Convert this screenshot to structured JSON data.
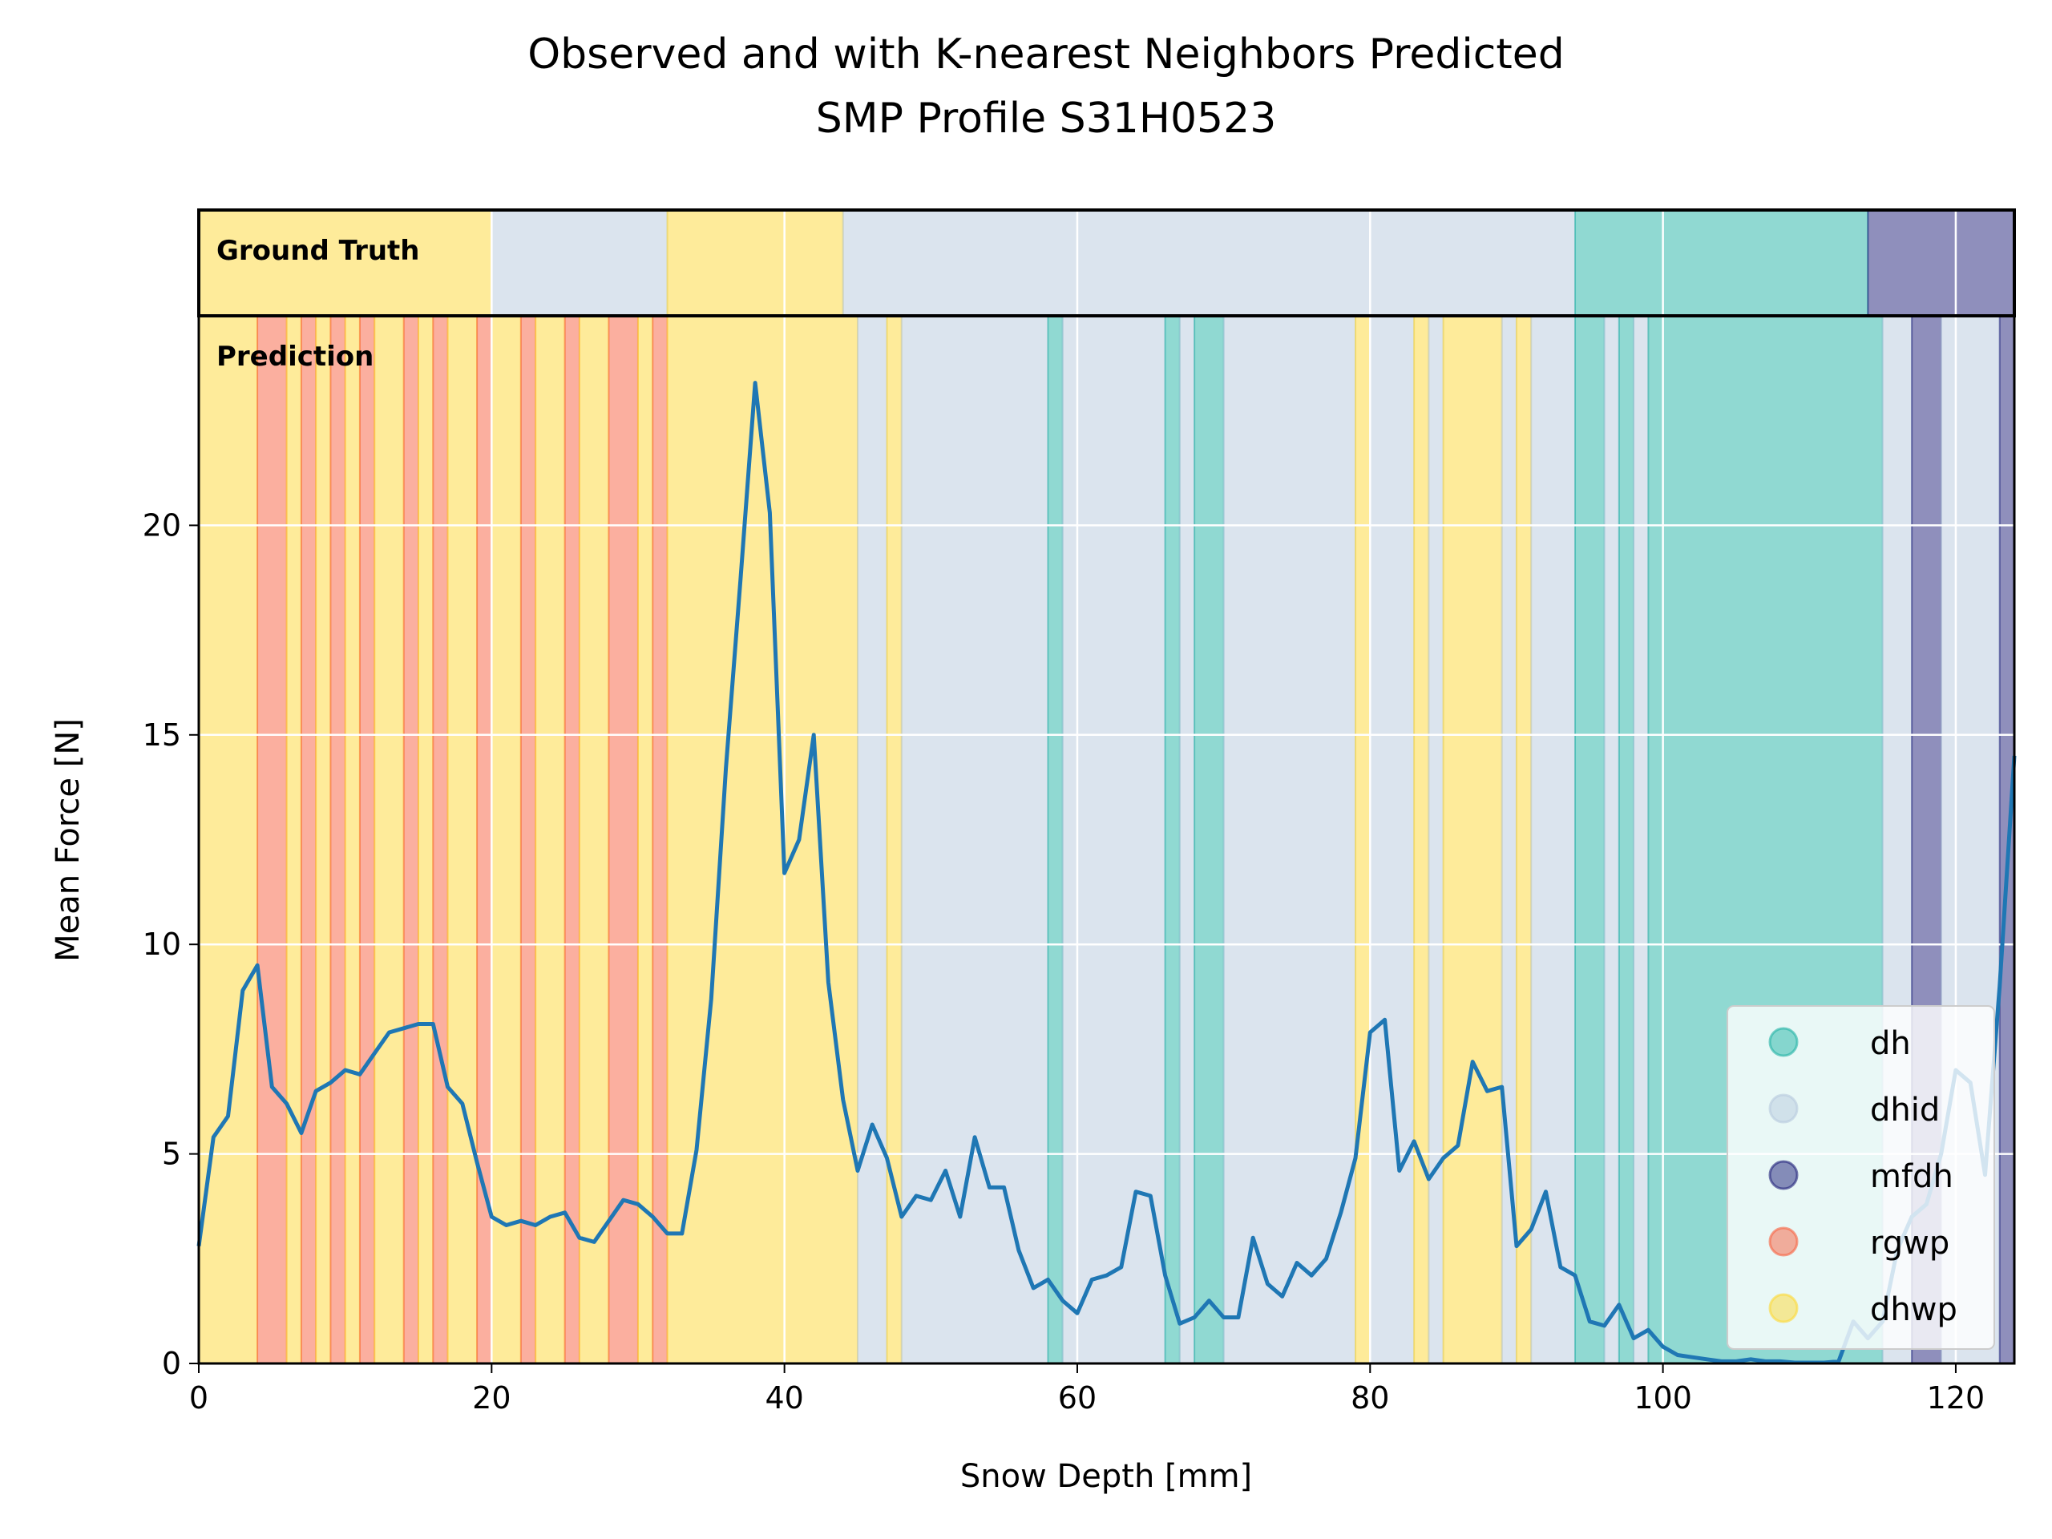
{
  "chart_data": {
    "type": "line",
    "title": "Observed and with K-nearest Neighbors Predicted",
    "subtitle": "SMP Profile S31H0523",
    "xlabel": "Snow Depth [mm]",
    "ylabel": "Mean Force [N]",
    "xlim": [
      0,
      124
    ],
    "ylim": [
      0,
      25
    ],
    "xticks": [
      0,
      20,
      40,
      60,
      80,
      100,
      120
    ],
    "yticks": [
      0,
      5,
      10,
      15,
      20
    ],
    "grid": true,
    "legend_position": "lower-right",
    "panel_labels": {
      "ground_truth": "Ground Truth",
      "prediction": "Prediction"
    },
    "classes": [
      {
        "name": "dh",
        "color": "#21b3a5"
      },
      {
        "name": "dhid",
        "color": "#b7c9de"
      },
      {
        "name": "mfdh",
        "color": "#1f1f7a"
      },
      {
        "name": "rgwp",
        "color": "#f8603f"
      },
      {
        "name": "dhwp",
        "color": "#fdd835"
      }
    ],
    "ground_truth": [
      {
        "from": 0,
        "to": 20,
        "label": "dhwp"
      },
      {
        "from": 20,
        "to": 32,
        "label": "dhid"
      },
      {
        "from": 32,
        "to": 44,
        "label": "dhwp"
      },
      {
        "from": 44,
        "to": 94,
        "label": "dhid"
      },
      {
        "from": 94,
        "to": 114,
        "label": "dh"
      },
      {
        "from": 114,
        "to": 124,
        "label": "mfdh"
      }
    ],
    "prediction": [
      {
        "from": 0,
        "to": 4,
        "label": "dhwp"
      },
      {
        "from": 4,
        "to": 6,
        "label": "rgwp"
      },
      {
        "from": 6,
        "to": 7,
        "label": "dhwp"
      },
      {
        "from": 7,
        "to": 8,
        "label": "rgwp"
      },
      {
        "from": 8,
        "to": 9,
        "label": "dhwp"
      },
      {
        "from": 9,
        "to": 10,
        "label": "rgwp"
      },
      {
        "from": 10,
        "to": 11,
        "label": "dhwp"
      },
      {
        "from": 11,
        "to": 12,
        "label": "rgwp"
      },
      {
        "from": 12,
        "to": 14,
        "label": "dhwp"
      },
      {
        "from": 14,
        "to": 15,
        "label": "rgwp"
      },
      {
        "from": 15,
        "to": 16,
        "label": "dhwp"
      },
      {
        "from": 16,
        "to": 17,
        "label": "rgwp"
      },
      {
        "from": 17,
        "to": 19,
        "label": "dhwp"
      },
      {
        "from": 19,
        "to": 20,
        "label": "rgwp"
      },
      {
        "from": 20,
        "to": 22,
        "label": "dhwp"
      },
      {
        "from": 22,
        "to": 23,
        "label": "rgwp"
      },
      {
        "from": 23,
        "to": 25,
        "label": "dhwp"
      },
      {
        "from": 25,
        "to": 26,
        "label": "rgwp"
      },
      {
        "from": 26,
        "to": 28,
        "label": "dhwp"
      },
      {
        "from": 28,
        "to": 30,
        "label": "rgwp"
      },
      {
        "from": 30,
        "to": 31,
        "label": "dhwp"
      },
      {
        "from": 31,
        "to": 32,
        "label": "rgwp"
      },
      {
        "from": 32,
        "to": 45,
        "label": "dhwp"
      },
      {
        "from": 45,
        "to": 47,
        "label": "dhid"
      },
      {
        "from": 47,
        "to": 48,
        "label": "dhwp"
      },
      {
        "from": 48,
        "to": 58,
        "label": "dhid"
      },
      {
        "from": 58,
        "to": 59,
        "label": "dh"
      },
      {
        "from": 59,
        "to": 66,
        "label": "dhid"
      },
      {
        "from": 66,
        "to": 67,
        "label": "dh"
      },
      {
        "from": 67,
        "to": 68,
        "label": "dhid"
      },
      {
        "from": 68,
        "to": 70,
        "label": "dh"
      },
      {
        "from": 70,
        "to": 79,
        "label": "dhid"
      },
      {
        "from": 79,
        "to": 80,
        "label": "dhwp"
      },
      {
        "from": 80,
        "to": 83,
        "label": "dhid"
      },
      {
        "from": 83,
        "to": 84,
        "label": "dhwp"
      },
      {
        "from": 84,
        "to": 85,
        "label": "dhid"
      },
      {
        "from": 85,
        "to": 89,
        "label": "dhwp"
      },
      {
        "from": 89,
        "to": 90,
        "label": "dhid"
      },
      {
        "from": 90,
        "to": 91,
        "label": "dhwp"
      },
      {
        "from": 91,
        "to": 94,
        "label": "dhid"
      },
      {
        "from": 94,
        "to": 96,
        "label": "dh"
      },
      {
        "from": 96,
        "to": 97,
        "label": "dhid"
      },
      {
        "from": 97,
        "to": 98,
        "label": "dh"
      },
      {
        "from": 98,
        "to": 99,
        "label": "dhid"
      },
      {
        "from": 99,
        "to": 115,
        "label": "dh"
      },
      {
        "from": 115,
        "to": 117,
        "label": "dhid"
      },
      {
        "from": 117,
        "to": 119,
        "label": "mfdh"
      },
      {
        "from": 119,
        "to": 123,
        "label": "dhid"
      },
      {
        "from": 123,
        "to": 124,
        "label": "mfdh"
      }
    ],
    "series": [
      {
        "x": [
          0,
          1,
          2,
          3,
          4,
          5,
          6,
          7,
          8,
          9,
          10,
          11,
          12,
          13,
          14,
          15,
          16,
          17,
          18,
          19,
          20,
          21,
          22,
          23,
          24,
          25,
          26,
          27,
          28,
          29,
          30,
          31,
          32,
          33,
          34,
          35,
          36,
          37,
          38,
          39,
          40,
          41,
          42,
          43,
          44,
          45,
          46,
          47,
          48,
          49,
          50,
          51,
          52,
          53,
          54,
          55,
          56,
          57,
          58,
          59,
          60,
          61,
          62,
          63,
          64,
          65,
          66,
          67,
          68,
          69,
          70,
          71,
          72,
          73,
          74,
          75,
          76,
          77,
          78,
          79,
          80,
          81,
          82,
          83,
          84,
          85,
          86,
          87,
          88,
          89,
          90,
          91,
          92,
          93,
          94,
          95,
          96,
          97,
          98,
          99,
          100,
          101,
          102,
          103,
          104,
          105,
          106,
          107,
          108,
          109,
          110,
          111,
          112,
          113,
          114,
          115,
          116,
          117,
          118,
          119,
          120,
          121,
          122,
          123,
          124
        ],
        "y": [
          2.8,
          5.4,
          5.9,
          8.9,
          9.5,
          6.6,
          6.2,
          5.5,
          6.5,
          6.7,
          7.0,
          6.9,
          7.4,
          7.9,
          8.0,
          8.1,
          8.1,
          6.6,
          6.2,
          4.8,
          3.5,
          3.3,
          3.4,
          3.3,
          3.5,
          3.6,
          3.0,
          2.9,
          3.4,
          3.9,
          3.8,
          3.5,
          3.1,
          3.1,
          5.1,
          8.7,
          14.2,
          18.7,
          23.4,
          20.3,
          11.7,
          12.5,
          15.0,
          9.1,
          6.3,
          4.6,
          5.7,
          4.9,
          3.5,
          4.0,
          3.9,
          4.6,
          3.5,
          5.4,
          4.2,
          4.2,
          2.7,
          1.8,
          2.0,
          1.5,
          1.2,
          2.0,
          2.1,
          2.3,
          4.1,
          4.0,
          2.1,
          0.95,
          1.1,
          1.5,
          1.1,
          1.1,
          3.0,
          1.9,
          1.6,
          2.4,
          2.1,
          2.5,
          3.6,
          4.9,
          7.9,
          8.2,
          4.6,
          5.3,
          4.4,
          4.9,
          5.2,
          7.2,
          6.5,
          6.6,
          2.8,
          3.2,
          4.1,
          2.3,
          2.1,
          1.0,
          0.9,
          1.4,
          0.6,
          0.8,
          0.4,
          0.2,
          0.15,
          0.1,
          0.05,
          0.05,
          0.1,
          0.05,
          0.05,
          0.02,
          0.02,
          0.02,
          0.05,
          1.0,
          0.6,
          1.0,
          2.7,
          3.5,
          3.8,
          5.0,
          7.0,
          6.7,
          4.5,
          9.0,
          14.5
        ]
      }
    ]
  }
}
